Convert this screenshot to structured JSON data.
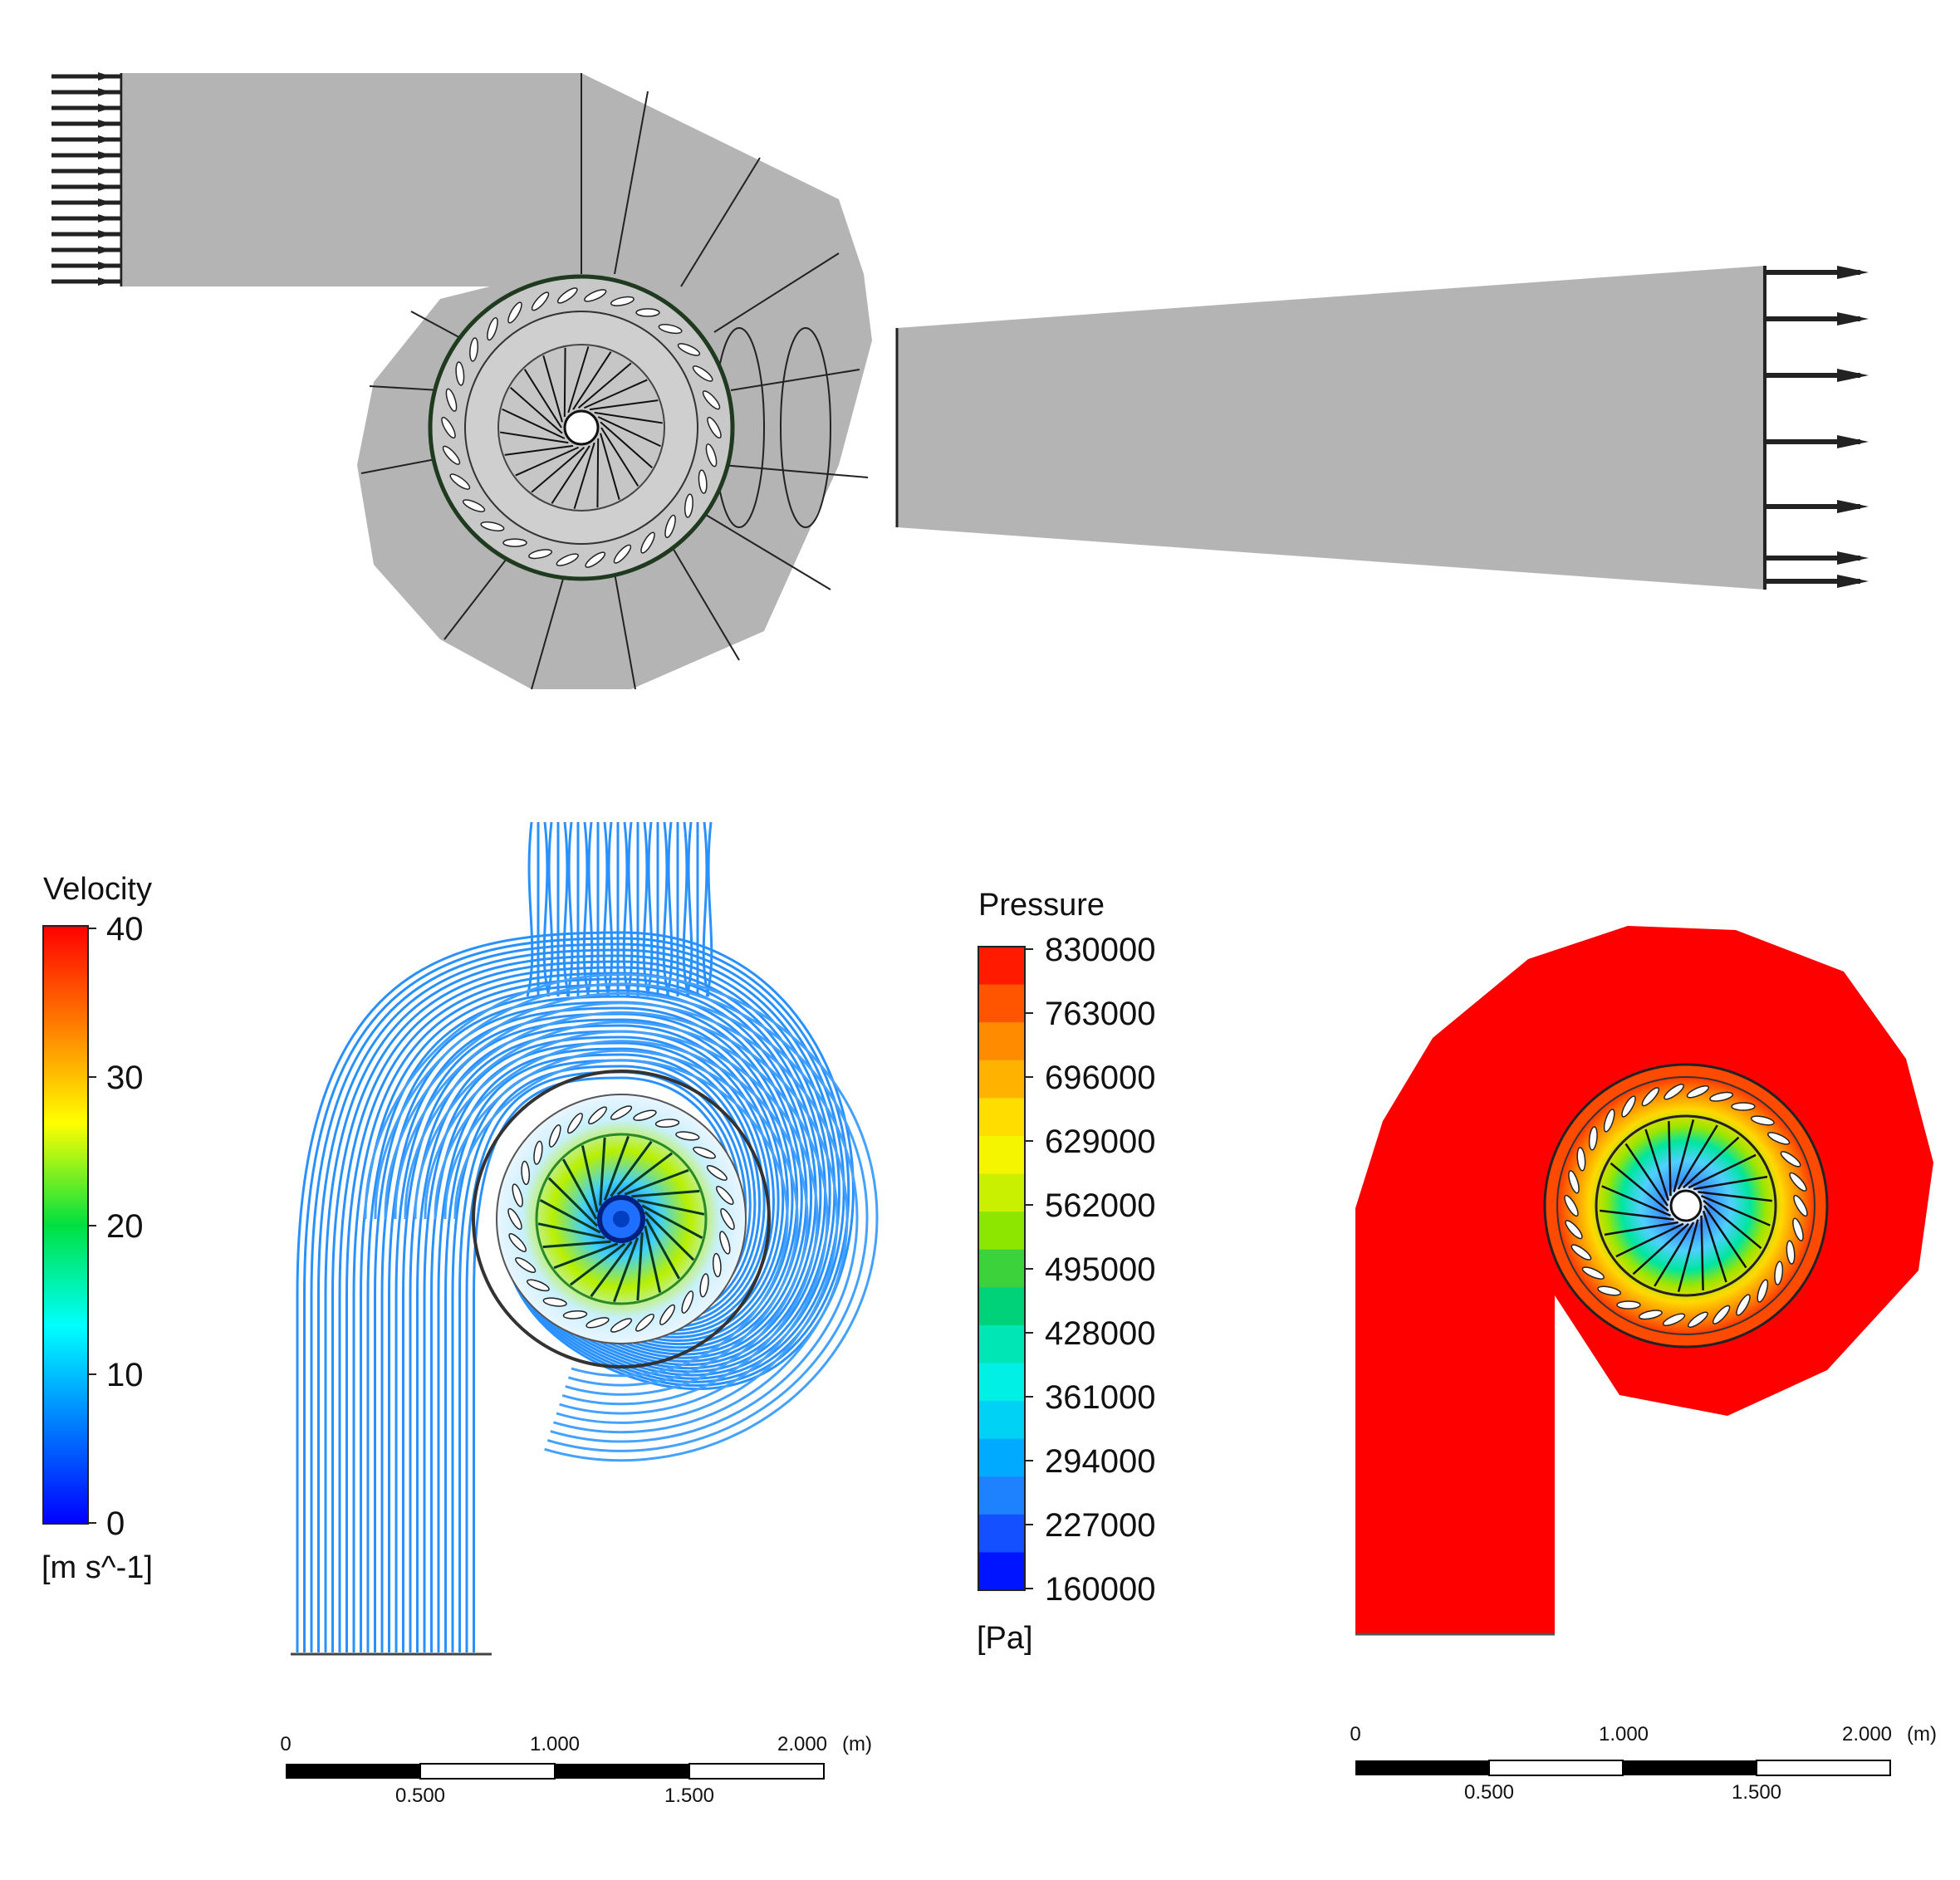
{
  "velocity_legend": {
    "title": "Velocity",
    "unit": "[m s^-1]",
    "ticks": [
      "40",
      "30",
      "20",
      "10",
      "0"
    ],
    "min": 0,
    "max": 40,
    "colors": [
      "#ff0000",
      "#ff8000",
      "#ffff00",
      "#00e040",
      "#00ffff",
      "#0080ff",
      "#0000ff"
    ]
  },
  "pressure_legend": {
    "title": "Pressure",
    "unit": "[Pa]",
    "ticks": [
      "830000",
      "763000",
      "696000",
      "629000",
      "562000",
      "495000",
      "428000",
      "361000",
      "294000",
      "227000",
      "160000"
    ],
    "band_colors": [
      "#ff1a00",
      "#ff5500",
      "#ff8c00",
      "#ffb300",
      "#ffdd00",
      "#f5f500",
      "#c8f000",
      "#8ce600",
      "#3cd23c",
      "#00d27a",
      "#00e6b4",
      "#00f0e6",
      "#00d2f5",
      "#00aaff",
      "#1e82ff",
      "#1450ff",
      "#0014ff"
    ]
  },
  "scale_bar_left": {
    "labels_top": [
      "0",
      "1.000",
      "2.000"
    ],
    "unit": "(m)",
    "labels_bottom": [
      "0.500",
      "1.500"
    ]
  },
  "scale_bar_right": {
    "labels_top": [
      "0",
      "1.000",
      "2.000"
    ],
    "unit": "(m)",
    "labels_bottom": [
      "0.500",
      "1.500"
    ]
  },
  "colors": {
    "mesh_gray": "#b4b4b4",
    "streamline_blue": "#1e8cff",
    "pressure_red": "#ff0000"
  }
}
